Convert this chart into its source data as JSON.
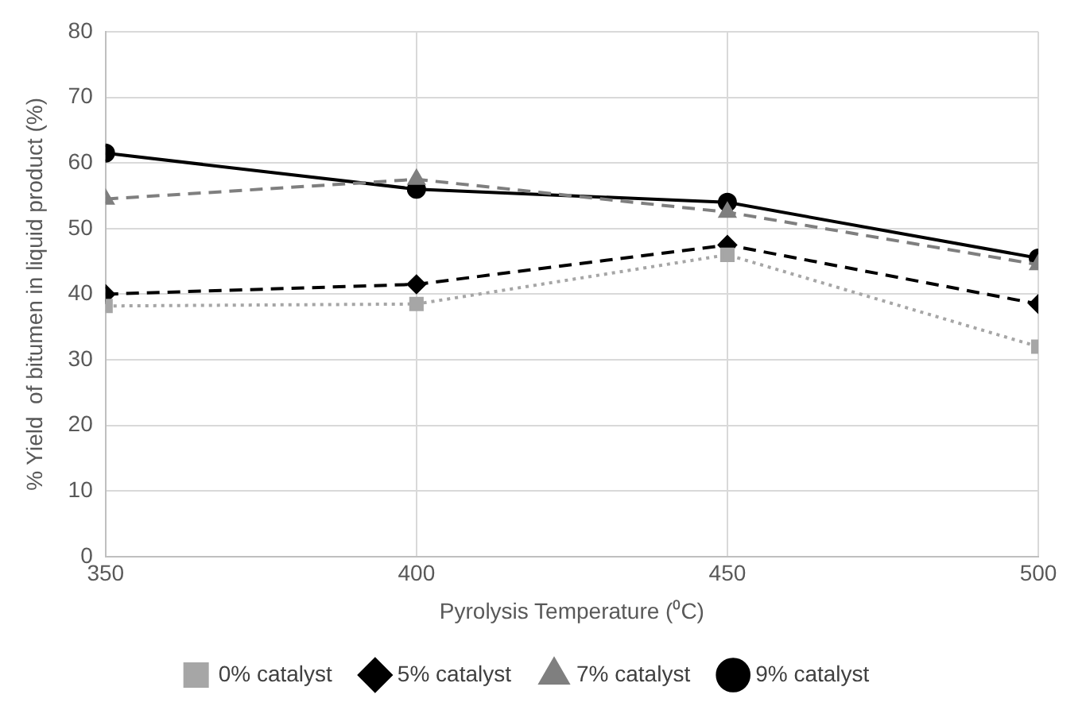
{
  "chart_data": {
    "type": "line",
    "xlabel": "Pyrolysis Temperature (⁰C)",
    "ylabel": "% Yield  of bitumen in liquid product (%)",
    "x": [
      350,
      400,
      450,
      500
    ],
    "xlim": [
      350,
      500
    ],
    "xticks": [
      350,
      400,
      450,
      500
    ],
    "ylim": [
      0,
      80
    ],
    "yticks": [
      0,
      10,
      20,
      30,
      40,
      50,
      60,
      70,
      80
    ],
    "grid": true,
    "legend": "bottom",
    "series": [
      {
        "name": "0% catalyst",
        "color": "#a6a6a6",
        "marker": "square",
        "line_style": "dotted",
        "values": [
          38.2,
          38.5,
          46,
          32
        ]
      },
      {
        "name": "5% catalyst",
        "color": "#000000",
        "marker": "diamond",
        "line_style": "dashed",
        "values": [
          40,
          41.5,
          47.5,
          38.5
        ]
      },
      {
        "name": "7% catalyst",
        "color": "#7f7f7f",
        "marker": "triangle",
        "line_style": "dashed",
        "values": [
          54.5,
          57.5,
          52.5,
          44.5
        ]
      },
      {
        "name": "9% catalyst",
        "color": "#000000",
        "marker": "circle",
        "line_style": "solid",
        "values": [
          61.5,
          56,
          54,
          45.5
        ]
      }
    ]
  }
}
